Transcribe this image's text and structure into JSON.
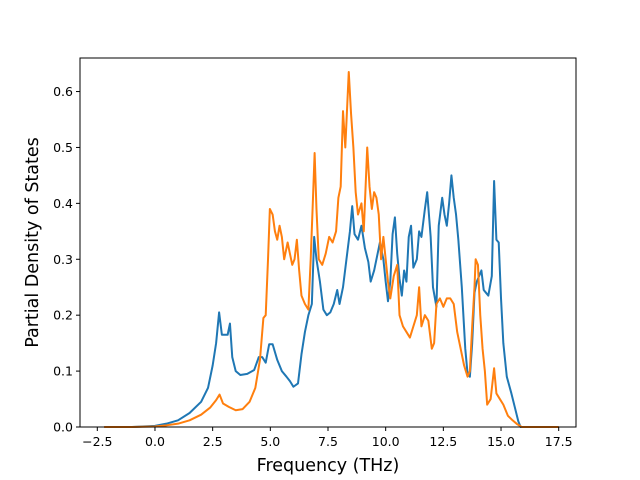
{
  "chart_data": {
    "type": "line",
    "title": "",
    "xlabel": "Frequency (THz)",
    "ylabel": "Partial Density of States",
    "xlim": [
      -3.25,
      18.25
    ],
    "ylim": [
      0.0,
      0.66
    ],
    "xticks": [
      -2.5,
      0.0,
      2.5,
      5.0,
      7.5,
      10.0,
      12.5,
      15.0,
      17.5
    ],
    "xtick_labels": [
      "−2.5",
      "0.0",
      "2.5",
      "5.0",
      "7.5",
      "10.0",
      "12.5",
      "15.0",
      "17.5"
    ],
    "yticks": [
      0.0,
      0.1,
      0.2,
      0.3,
      0.4,
      0.5,
      0.6
    ],
    "ytick_labels": [
      "0.0",
      "0.1",
      "0.2",
      "0.3",
      "0.4",
      "0.5",
      "0.6"
    ],
    "grid": false,
    "legend": "none",
    "series": [
      {
        "color": "#1f77b4",
        "points": [
          [
            -2.2,
            0.0
          ],
          [
            -1.0,
            0.0
          ],
          [
            0.0,
            0.002
          ],
          [
            0.5,
            0.006
          ],
          [
            1.0,
            0.012
          ],
          [
            1.5,
            0.025
          ],
          [
            2.0,
            0.045
          ],
          [
            2.3,
            0.07
          ],
          [
            2.5,
            0.11
          ],
          [
            2.65,
            0.15
          ],
          [
            2.78,
            0.205
          ],
          [
            2.9,
            0.165
          ],
          [
            3.0,
            0.165
          ],
          [
            3.15,
            0.165
          ],
          [
            3.25,
            0.185
          ],
          [
            3.35,
            0.125
          ],
          [
            3.5,
            0.1
          ],
          [
            3.7,
            0.093
          ],
          [
            4.0,
            0.095
          ],
          [
            4.3,
            0.102
          ],
          [
            4.5,
            0.125
          ],
          [
            4.65,
            0.125
          ],
          [
            4.8,
            0.115
          ],
          [
            4.95,
            0.148
          ],
          [
            5.1,
            0.148
          ],
          [
            5.3,
            0.12
          ],
          [
            5.5,
            0.1
          ],
          [
            5.7,
            0.09
          ],
          [
            5.85,
            0.082
          ],
          [
            6.0,
            0.072
          ],
          [
            6.2,
            0.078
          ],
          [
            6.35,
            0.13
          ],
          [
            6.5,
            0.17
          ],
          [
            6.65,
            0.2
          ],
          [
            6.8,
            0.22
          ],
          [
            6.9,
            0.34
          ],
          [
            7.0,
            0.3
          ],
          [
            7.15,
            0.26
          ],
          [
            7.3,
            0.21
          ],
          [
            7.45,
            0.2
          ],
          [
            7.6,
            0.205
          ],
          [
            7.75,
            0.22
          ],
          [
            7.9,
            0.245
          ],
          [
            8.0,
            0.22
          ],
          [
            8.15,
            0.25
          ],
          [
            8.3,
            0.3
          ],
          [
            8.45,
            0.35
          ],
          [
            8.55,
            0.395
          ],
          [
            8.65,
            0.345
          ],
          [
            8.8,
            0.335
          ],
          [
            8.95,
            0.36
          ],
          [
            9.1,
            0.32
          ],
          [
            9.25,
            0.295
          ],
          [
            9.35,
            0.26
          ],
          [
            9.5,
            0.28
          ],
          [
            9.65,
            0.31
          ],
          [
            9.75,
            0.33
          ],
          [
            9.9,
            0.3
          ],
          [
            10.0,
            0.26
          ],
          [
            10.1,
            0.225
          ],
          [
            10.2,
            0.26
          ],
          [
            10.3,
            0.345
          ],
          [
            10.4,
            0.375
          ],
          [
            10.5,
            0.31
          ],
          [
            10.6,
            0.265
          ],
          [
            10.7,
            0.235
          ],
          [
            10.8,
            0.28
          ],
          [
            10.9,
            0.26
          ],
          [
            11.0,
            0.34
          ],
          [
            11.1,
            0.36
          ],
          [
            11.2,
            0.285
          ],
          [
            11.35,
            0.3
          ],
          [
            11.45,
            0.35
          ],
          [
            11.55,
            0.34
          ],
          [
            11.7,
            0.39
          ],
          [
            11.8,
            0.42
          ],
          [
            11.95,
            0.34
          ],
          [
            12.05,
            0.25
          ],
          [
            12.2,
            0.215
          ],
          [
            12.3,
            0.36
          ],
          [
            12.45,
            0.41
          ],
          [
            12.55,
            0.38
          ],
          [
            12.65,
            0.36
          ],
          [
            12.75,
            0.4
          ],
          [
            12.85,
            0.45
          ],
          [
            12.95,
            0.41
          ],
          [
            13.05,
            0.38
          ],
          [
            13.15,
            0.335
          ],
          [
            13.3,
            0.25
          ],
          [
            13.45,
            0.14
          ],
          [
            13.55,
            0.095
          ],
          [
            13.65,
            0.09
          ],
          [
            13.75,
            0.15
          ],
          [
            13.85,
            0.24
          ],
          [
            13.95,
            0.26
          ],
          [
            14.05,
            0.27
          ],
          [
            14.15,
            0.28
          ],
          [
            14.25,
            0.245
          ],
          [
            14.35,
            0.24
          ],
          [
            14.45,
            0.235
          ],
          [
            14.6,
            0.27
          ],
          [
            14.7,
            0.44
          ],
          [
            14.8,
            0.335
          ],
          [
            14.9,
            0.33
          ],
          [
            15.0,
            0.23
          ],
          [
            15.1,
            0.15
          ],
          [
            15.25,
            0.09
          ],
          [
            15.45,
            0.06
          ],
          [
            15.6,
            0.035
          ],
          [
            15.75,
            0.01
          ],
          [
            15.85,
            0.0
          ],
          [
            16.5,
            0.0
          ],
          [
            17.5,
            0.0
          ]
        ]
      },
      {
        "color": "#ff7f0e",
        "points": [
          [
            -2.2,
            0.0
          ],
          [
            -1.0,
            0.0
          ],
          [
            0.0,
            0.001
          ],
          [
            0.5,
            0.003
          ],
          [
            1.0,
            0.006
          ],
          [
            1.5,
            0.012
          ],
          [
            2.0,
            0.022
          ],
          [
            2.4,
            0.035
          ],
          [
            2.65,
            0.048
          ],
          [
            2.8,
            0.058
          ],
          [
            2.95,
            0.042
          ],
          [
            3.2,
            0.036
          ],
          [
            3.5,
            0.03
          ],
          [
            3.8,
            0.032
          ],
          [
            4.1,
            0.045
          ],
          [
            4.35,
            0.07
          ],
          [
            4.55,
            0.12
          ],
          [
            4.7,
            0.195
          ],
          [
            4.8,
            0.2
          ],
          [
            4.9,
            0.3
          ],
          [
            4.98,
            0.39
          ],
          [
            5.1,
            0.38
          ],
          [
            5.2,
            0.35
          ],
          [
            5.3,
            0.335
          ],
          [
            5.4,
            0.36
          ],
          [
            5.5,
            0.34
          ],
          [
            5.6,
            0.3
          ],
          [
            5.75,
            0.33
          ],
          [
            5.85,
            0.31
          ],
          [
            5.95,
            0.29
          ],
          [
            6.05,
            0.3
          ],
          [
            6.15,
            0.335
          ],
          [
            6.25,
            0.28
          ],
          [
            6.35,
            0.235
          ],
          [
            6.5,
            0.22
          ],
          [
            6.65,
            0.21
          ],
          [
            6.75,
            0.3
          ],
          [
            6.85,
            0.41
          ],
          [
            6.92,
            0.49
          ],
          [
            7.0,
            0.39
          ],
          [
            7.1,
            0.3
          ],
          [
            7.25,
            0.29
          ],
          [
            7.4,
            0.31
          ],
          [
            7.55,
            0.34
          ],
          [
            7.7,
            0.33
          ],
          [
            7.85,
            0.35
          ],
          [
            7.95,
            0.41
          ],
          [
            8.05,
            0.43
          ],
          [
            8.15,
            0.565
          ],
          [
            8.25,
            0.5
          ],
          [
            8.4,
            0.635
          ],
          [
            8.5,
            0.56
          ],
          [
            8.6,
            0.5
          ],
          [
            8.7,
            0.42
          ],
          [
            8.8,
            0.38
          ],
          [
            8.95,
            0.4
          ],
          [
            9.05,
            0.35
          ],
          [
            9.2,
            0.5
          ],
          [
            9.3,
            0.43
          ],
          [
            9.4,
            0.39
          ],
          [
            9.5,
            0.42
          ],
          [
            9.6,
            0.41
          ],
          [
            9.7,
            0.38
          ],
          [
            9.8,
            0.3
          ],
          [
            9.9,
            0.34
          ],
          [
            10.0,
            0.3
          ],
          [
            10.1,
            0.26
          ],
          [
            10.2,
            0.23
          ],
          [
            10.35,
            0.27
          ],
          [
            10.5,
            0.29
          ],
          [
            10.6,
            0.2
          ],
          [
            10.75,
            0.18
          ],
          [
            10.9,
            0.17
          ],
          [
            11.05,
            0.16
          ],
          [
            11.2,
            0.18
          ],
          [
            11.35,
            0.2
          ],
          [
            11.45,
            0.25
          ],
          [
            11.55,
            0.18
          ],
          [
            11.7,
            0.2
          ],
          [
            11.85,
            0.19
          ],
          [
            12.0,
            0.14
          ],
          [
            12.1,
            0.15
          ],
          [
            12.2,
            0.22
          ],
          [
            12.35,
            0.23
          ],
          [
            12.5,
            0.215
          ],
          [
            12.65,
            0.23
          ],
          [
            12.8,
            0.23
          ],
          [
            12.95,
            0.22
          ],
          [
            13.1,
            0.17
          ],
          [
            13.25,
            0.14
          ],
          [
            13.4,
            0.11
          ],
          [
            13.55,
            0.09
          ],
          [
            13.65,
            0.1
          ],
          [
            13.75,
            0.18
          ],
          [
            13.85,
            0.25
          ],
          [
            13.9,
            0.3
          ],
          [
            14.0,
            0.29
          ],
          [
            14.1,
            0.2
          ],
          [
            14.2,
            0.14
          ],
          [
            14.3,
            0.1
          ],
          [
            14.4,
            0.04
          ],
          [
            14.55,
            0.05
          ],
          [
            14.7,
            0.105
          ],
          [
            14.8,
            0.06
          ],
          [
            14.95,
            0.05
          ],
          [
            15.1,
            0.04
          ],
          [
            15.3,
            0.02
          ],
          [
            15.5,
            0.012
          ],
          [
            15.7,
            0.005
          ],
          [
            15.9,
            0.0
          ],
          [
            16.5,
            0.0
          ],
          [
            17.5,
            0.0
          ]
        ]
      }
    ]
  }
}
